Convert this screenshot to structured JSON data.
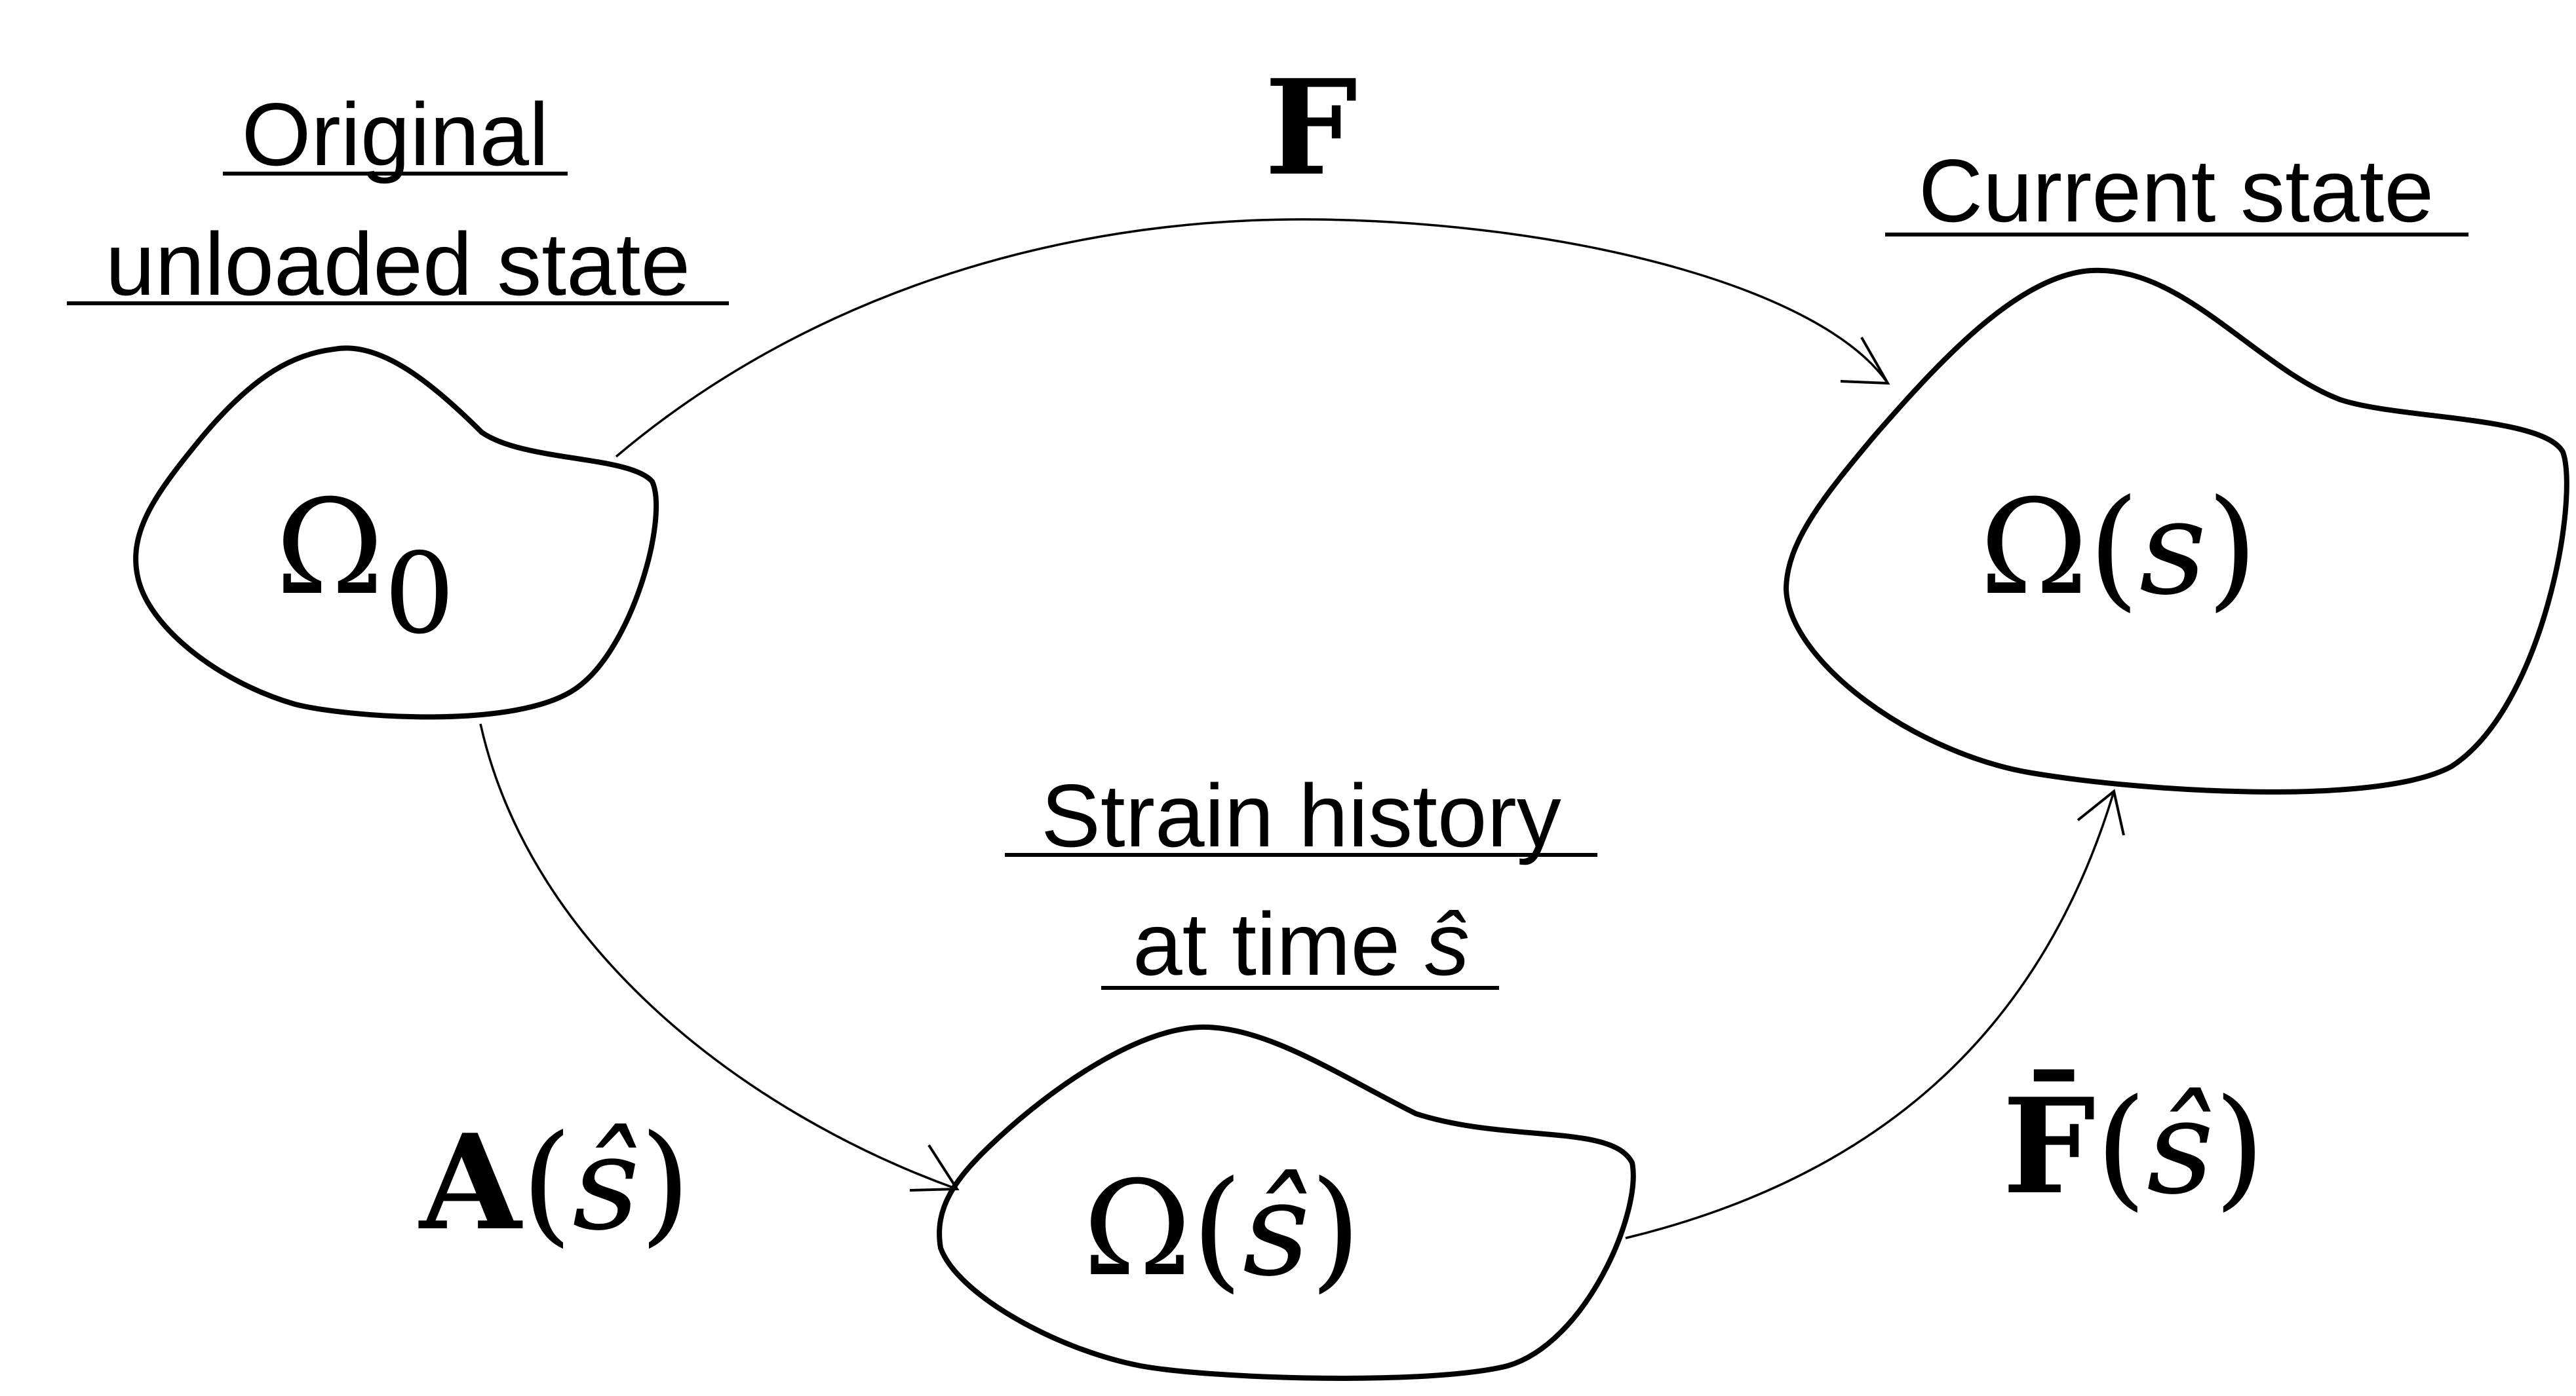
{
  "labels": {
    "original_line1": "Original",
    "original_line2": "unloaded state",
    "current": "Current state",
    "strain_line1": "Strain history",
    "strain_line2_text": "at time ",
    "strain_line2_var": "ŝ"
  },
  "states": {
    "original": {
      "symbol": "Ω",
      "subscript": "0"
    },
    "current": {
      "symbol": "Ω",
      "open": "(",
      "var": "s",
      "close": ")"
    },
    "strain": {
      "symbol": "Ω",
      "open": "(",
      "var": "ŝ",
      "close": ")"
    }
  },
  "maps": {
    "F": {
      "symbol": "F"
    },
    "A": {
      "symbol": "A",
      "open": "(",
      "var": "ŝ",
      "close": ")"
    },
    "Fbar": {
      "symbol": "F̄",
      "open": "(",
      "var": "ŝ",
      "close": ")"
    }
  }
}
